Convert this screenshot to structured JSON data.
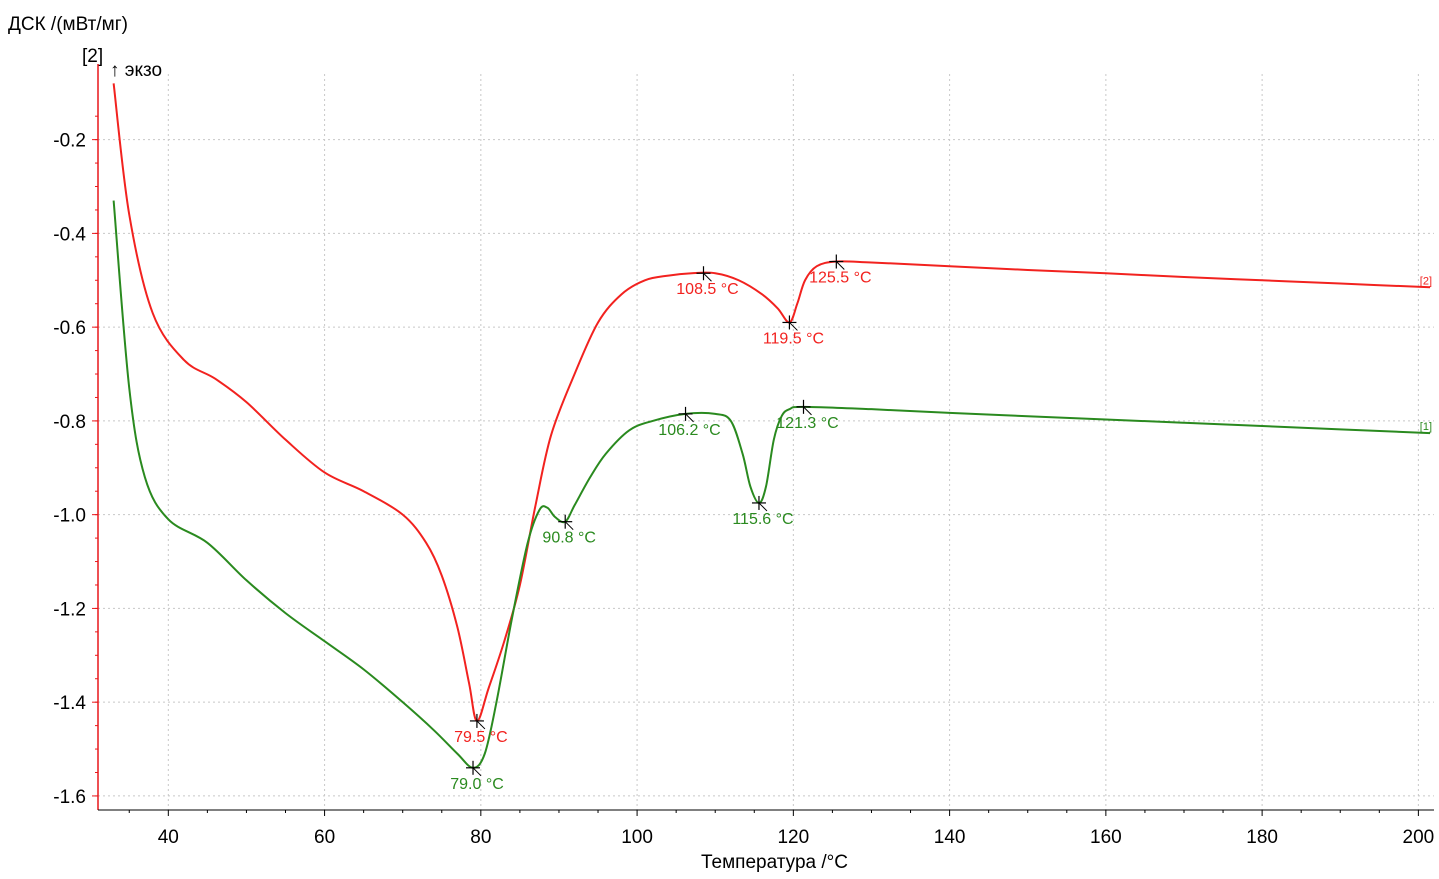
{
  "chart_data": {
    "type": "line",
    "ylabel": "ДСК /(мВт/мг)",
    "y_axis_tag": "[2]",
    "exo_label": "↑ экзо",
    "xlabel": "Температура /°C",
    "xlim": [
      31,
      202
    ],
    "ylim": [
      -1.63,
      -0.06
    ],
    "xticks": [
      "40",
      "60",
      "80",
      "100",
      "120",
      "140",
      "160",
      "180",
      "200"
    ],
    "yticks": [
      "-0.2",
      "-0.4",
      "-0.6",
      "-0.8",
      "-1.0",
      "-1.2",
      "-1.4",
      "-1.6"
    ],
    "grid": true,
    "colors": {
      "axis": "#e8171a",
      "series1": "#2a8a1f",
      "series2": "#f2221f"
    },
    "series": [
      {
        "name": "[2]",
        "color": "#f2221f",
        "x": [
          33,
          35,
          38,
          42,
          46,
          50,
          55,
          60,
          65,
          70,
          73,
          75,
          77,
          78.5,
          79.5,
          81,
          83,
          85,
          87,
          89,
          92,
          95,
          98,
          101,
          104,
          107,
          110,
          113,
          116,
          118,
          119.5,
          120.5,
          121.5,
          123,
          125.5,
          130,
          140,
          150,
          160,
          170,
          180,
          190,
          201.5
        ],
        "y": [
          -0.08,
          -0.36,
          -0.57,
          -0.67,
          -0.71,
          -0.76,
          -0.84,
          -0.91,
          -0.95,
          -1.0,
          -1.06,
          -1.13,
          -1.24,
          -1.36,
          -1.44,
          -1.37,
          -1.27,
          -1.15,
          -0.98,
          -0.83,
          -0.7,
          -0.59,
          -0.53,
          -0.5,
          -0.49,
          -0.485,
          -0.485,
          -0.5,
          -0.53,
          -0.56,
          -0.59,
          -0.55,
          -0.5,
          -0.47,
          -0.46,
          -0.462,
          -0.47,
          -0.478,
          -0.485,
          -0.493,
          -0.5,
          -0.507,
          -0.515
        ]
      },
      {
        "name": "[1]",
        "color": "#2a8a1f",
        "x": [
          33,
          35,
          37,
          40,
          45,
          50,
          55,
          60,
          65,
          70,
          74,
          77,
          79,
          80.5,
          82,
          84,
          86,
          87.5,
          88.5,
          89.5,
          90.8,
          92,
          94,
          96,
          99,
          102,
          106.2,
          110,
          112,
          113.5,
          114.5,
          115.6,
          116.5,
          117.5,
          118.5,
          119.5,
          121.3,
          130,
          140,
          150,
          160,
          170,
          180,
          190,
          201.5
        ],
        "y": [
          -0.33,
          -0.73,
          -0.92,
          -1.01,
          -1.06,
          -1.14,
          -1.21,
          -1.27,
          -1.33,
          -1.4,
          -1.46,
          -1.51,
          -1.54,
          -1.51,
          -1.4,
          -1.22,
          -1.06,
          -0.99,
          -0.985,
          -1.005,
          -1.015,
          -0.98,
          -0.92,
          -0.87,
          -0.82,
          -0.8,
          -0.785,
          -0.785,
          -0.8,
          -0.87,
          -0.94,
          -0.975,
          -0.94,
          -0.84,
          -0.79,
          -0.775,
          -0.77,
          -0.775,
          -0.783,
          -0.79,
          -0.797,
          -0.804,
          -0.811,
          -0.818,
          -0.826
        ]
      }
    ],
    "annotations": [
      {
        "text": "108.5 °C",
        "x": 108.5,
        "y": -0.485,
        "series": "[2]"
      },
      {
        "text": "119.5 °C",
        "x": 119.5,
        "y": -0.59,
        "series": "[2]"
      },
      {
        "text": "125.5 °C",
        "x": 125.5,
        "y": -0.46,
        "series": "[2]"
      },
      {
        "text": "79.5 °C",
        "x": 79.5,
        "y": -1.44,
        "series": "[2]"
      },
      {
        "text": "79.0 °C",
        "x": 79.0,
        "y": -1.54,
        "series": "[1]"
      },
      {
        "text": "90.8 °C",
        "x": 90.8,
        "y": -1.015,
        "series": "[1]"
      },
      {
        "text": "106.2 °C",
        "x": 106.2,
        "y": -0.785,
        "series": "[1]"
      },
      {
        "text": "115.6 °C",
        "x": 115.6,
        "y": -0.975,
        "series": "[1]"
      },
      {
        "text": "121.3 °C",
        "x": 121.3,
        "y": -0.77,
        "series": "[1]"
      }
    ],
    "end_labels": [
      {
        "text": "[2]",
        "series": "[2]"
      },
      {
        "text": "[1]",
        "series": "[1]"
      }
    ]
  }
}
